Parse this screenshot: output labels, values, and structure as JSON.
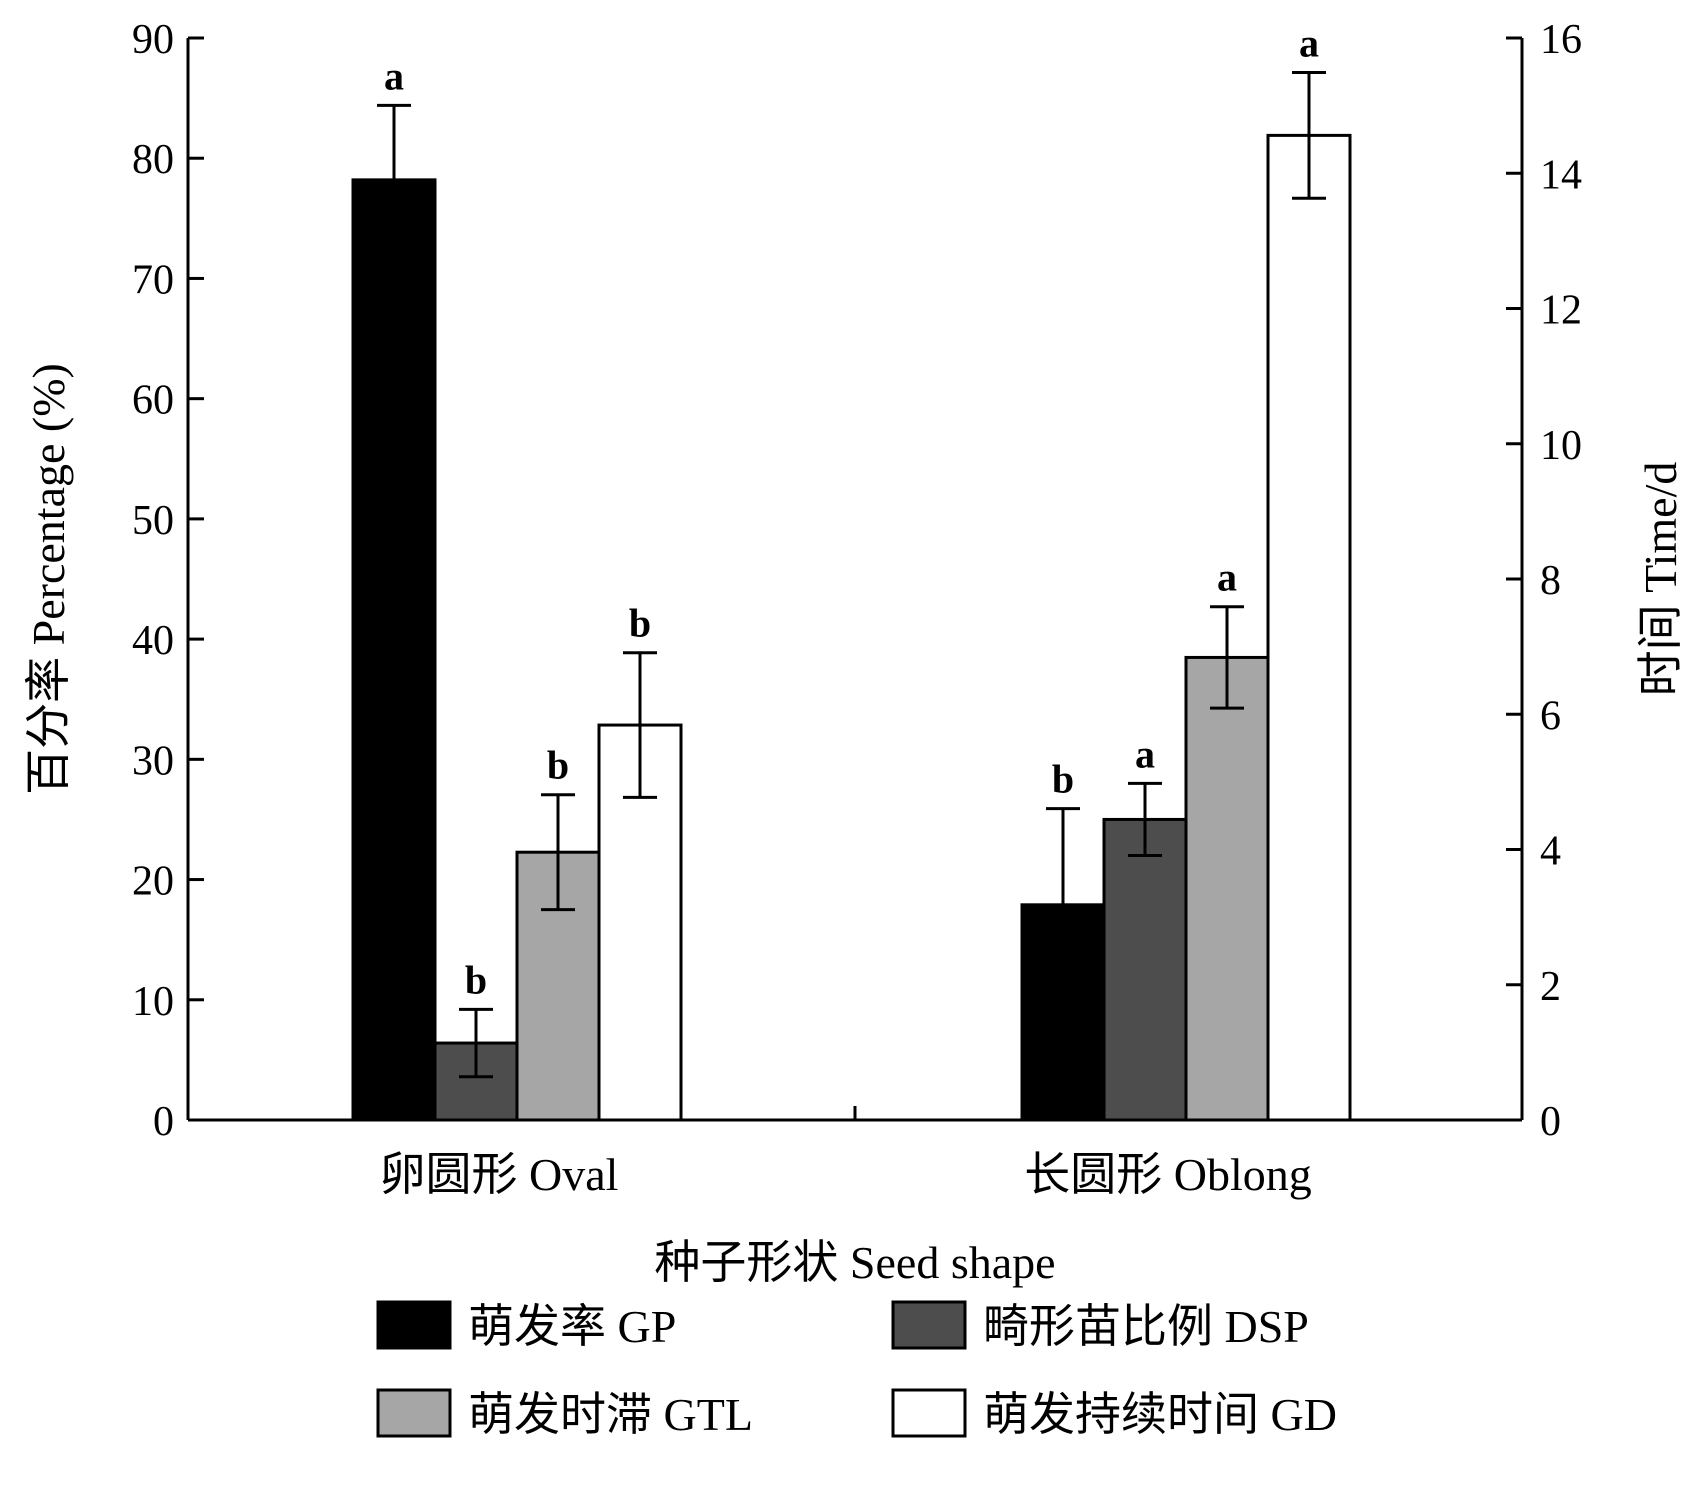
{
  "chart_data": {
    "type": "bar",
    "xlabel": "种子形状  Seed shape",
    "ylabel_left": "百分率  Percentage (%)",
    "ylabel_right": "时间  Time/d",
    "ylim_left": [
      0,
      90
    ],
    "yticks_left": [
      0,
      10,
      20,
      30,
      40,
      50,
      60,
      70,
      80,
      90
    ],
    "ylim_right": [
      0,
      16
    ],
    "yticks_right": [
      0,
      2,
      4,
      6,
      8,
      10,
      12,
      14,
      16
    ],
    "grid": false,
    "legend_position": "bottom",
    "categories": [
      "卵圆形  Oval",
      "长圆形  Oblong"
    ],
    "series": [
      {
        "name": "萌发率  GP",
        "axis": "left",
        "color": "#000000",
        "values": [
          78.2,
          17.9
        ],
        "errors": [
          6.2,
          8.0
        ],
        "letters": [
          "a",
          "b"
        ]
      },
      {
        "name": "畸形苗比例  DSP",
        "axis": "left",
        "color": "#4d4d4d",
        "values": [
          6.4,
          25.0
        ],
        "errors": [
          2.8,
          3.0
        ],
        "letters": [
          "b",
          "a"
        ]
      },
      {
        "name": "萌发时滞  GTL",
        "axis": "right",
        "color": "#a6a6a6",
        "values": [
          3.96,
          6.84
        ],
        "errors": [
          0.85,
          0.75
        ],
        "letters": [
          "b",
          "a"
        ]
      },
      {
        "name": "萌发持续时间  GD",
        "axis": "right",
        "color": "#ffffff",
        "values": [
          5.84,
          14.56
        ],
        "errors": [
          1.07,
          0.93
        ],
        "letters": [
          "b",
          "a"
        ]
      }
    ]
  }
}
